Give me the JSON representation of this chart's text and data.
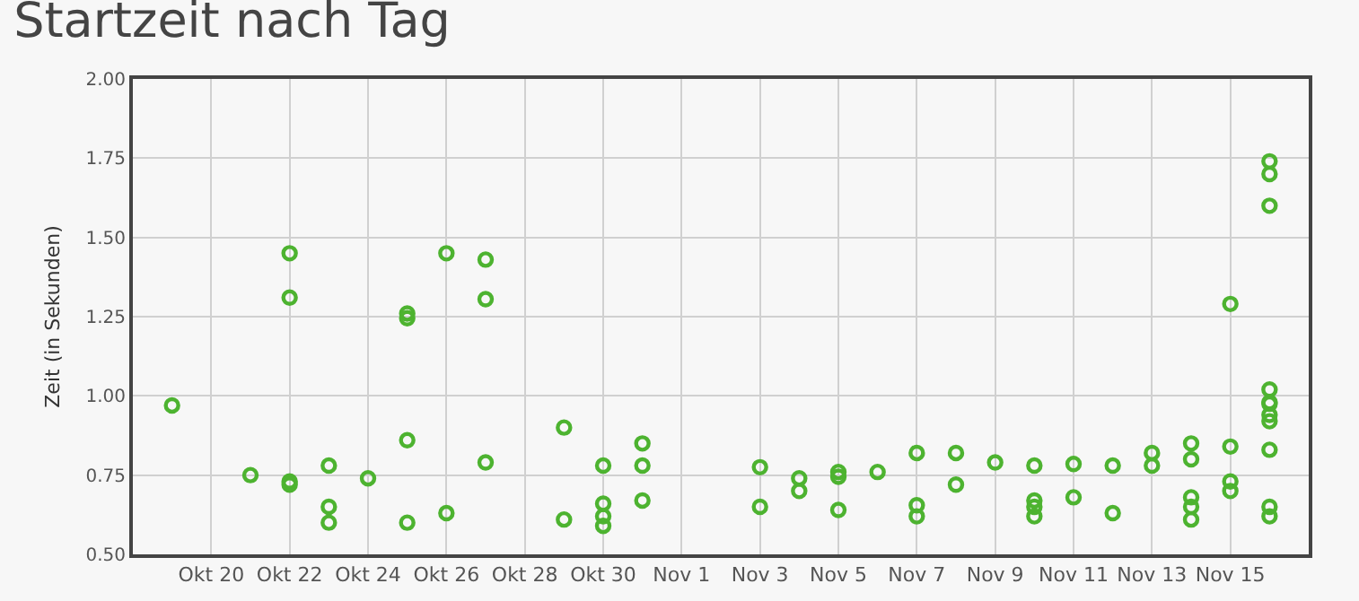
{
  "chart_data": {
    "type": "scatter",
    "title": "Startzeit nach Tag",
    "ylabel": "Zeit (in Sekunden)",
    "x": [
      "--10-19",
      "--10-21",
      "--10-22",
      "--10-22",
      "--10-22",
      "--10-22",
      "--10-23",
      "--10-23",
      "--10-23",
      "--10-24",
      "--10-25",
      "--10-25",
      "--10-25",
      "--10-25",
      "--10-26",
      "--10-26",
      "--10-27",
      "--10-27",
      "--10-27",
      "--10-29",
      "--10-29",
      "--10-30",
      "--10-30",
      "--10-30",
      "--10-30",
      "--10-31",
      "--10-31",
      "--10-31",
      "--11-03",
      "--11-03",
      "--11-04",
      "--11-04",
      "--11-05",
      "--11-05",
      "--11-05",
      "--11-06",
      "--11-07",
      "--11-07",
      "--11-07",
      "--11-08",
      "--11-08",
      "--11-09",
      "--11-10",
      "--11-10",
      "--11-10",
      "--11-10",
      "--11-11",
      "--11-11",
      "--11-12",
      "--11-12",
      "--11-13",
      "--11-13",
      "--11-14",
      "--11-14",
      "--11-14",
      "--11-14",
      "--11-14",
      "--11-15",
      "--11-15",
      "--11-15",
      "--11-15",
      "--11-16",
      "--11-16",
      "--11-16",
      "--11-16",
      "--11-16",
      "--11-16",
      "--11-16",
      "--11-16",
      "--11-16",
      "--11-16",
      "--11-16"
    ],
    "values": [
      0.97,
      0.75,
      1.45,
      1.31,
      0.73,
      0.72,
      0.78,
      0.65,
      0.6,
      0.74,
      1.26,
      1.245,
      0.86,
      0.6,
      1.45,
      0.63,
      1.43,
      1.305,
      0.79,
      0.9,
      0.61,
      0.78,
      0.66,
      0.62,
      0.59,
      0.85,
      0.78,
      0.67,
      0.775,
      0.65,
      0.74,
      0.7,
      0.76,
      0.745,
      0.64,
      0.76,
      0.82,
      0.655,
      0.62,
      0.82,
      0.72,
      0.79,
      0.78,
      0.67,
      0.65,
      0.62,
      0.785,
      0.68,
      0.78,
      0.63,
      0.82,
      0.78,
      0.85,
      0.8,
      0.68,
      0.65,
      0.61,
      1.29,
      0.84,
      0.73,
      0.7,
      1.74,
      1.7,
      1.6,
      1.02,
      0.98,
      0.975,
      0.94,
      0.92,
      0.83,
      0.65,
      0.62
    ],
    "color": "#4db330",
    "marker": "circle",
    "grid": true,
    "xlim": [
      "--10-18",
      "--11-17"
    ],
    "xticks": [
      {
        "value": "--10-20",
        "label": "Okt 20"
      },
      {
        "value": "--10-22",
        "label": "Okt 22"
      },
      {
        "value": "--10-24",
        "label": "Okt 24"
      },
      {
        "value": "--10-26",
        "label": "Okt 26"
      },
      {
        "value": "--10-28",
        "label": "Okt 28"
      },
      {
        "value": "--10-30",
        "label": "Okt 30"
      },
      {
        "value": "--11-01",
        "label": "Nov 1"
      },
      {
        "value": "--11-03",
        "label": "Nov 3"
      },
      {
        "value": "--11-05",
        "label": "Nov 5"
      },
      {
        "value": "--11-07",
        "label": "Nov 7"
      },
      {
        "value": "--11-09",
        "label": "Nov 9"
      },
      {
        "value": "--11-11",
        "label": "Nov 11"
      },
      {
        "value": "--11-13",
        "label": "Nov 13"
      },
      {
        "value": "--11-15",
        "label": "Nov 15"
      }
    ],
    "ylim": [
      0.5,
      2.0
    ],
    "yticks": [
      {
        "value": 0.5,
        "label": "0.50"
      },
      {
        "value": 0.75,
        "label": "0.75"
      },
      {
        "value": 1.0,
        "label": "1.00"
      },
      {
        "value": 1.25,
        "label": "1.25"
      },
      {
        "value": 1.5,
        "label": "1.50"
      },
      {
        "value": 1.75,
        "label": "1.75"
      },
      {
        "value": 2.0,
        "label": "2.00"
      }
    ]
  }
}
